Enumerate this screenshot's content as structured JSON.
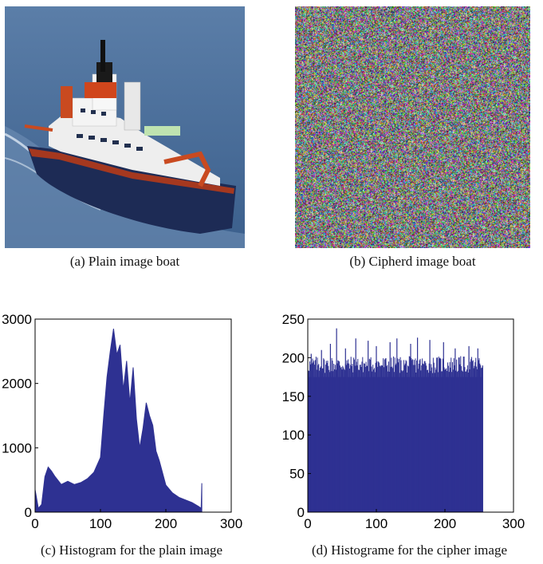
{
  "figure": {
    "panels": [
      {
        "id": "a",
        "caption": "(a) Plain image boat",
        "kind": "photo",
        "palette": {
          "sea": "#4a6f9a",
          "hull": "#1d2b55",
          "superstructure": "#f2f2f2",
          "accent": "#d0461c"
        }
      },
      {
        "id": "b",
        "caption": "(b) Cipherd image boat",
        "kind": "noise"
      },
      {
        "id": "c",
        "caption": "(c) Histogram for the plain image",
        "kind": "histogram"
      },
      {
        "id": "d",
        "caption": "(d) Histograme for the cipher image",
        "kind": "histogram"
      }
    ]
  },
  "chart_data": [
    {
      "type": "area",
      "panel": "c",
      "title": "",
      "xlabel": "",
      "ylabel": "",
      "xlim": [
        0,
        300
      ],
      "ylim": [
        0,
        3000
      ],
      "x_ticks": [
        0,
        100,
        200,
        300
      ],
      "y_ticks": [
        0,
        1000,
        2000,
        3000
      ],
      "fill_color": "#2e3192",
      "x": [
        0,
        5,
        10,
        15,
        20,
        25,
        30,
        40,
        50,
        60,
        70,
        80,
        90,
        100,
        105,
        110,
        115,
        120,
        125,
        130,
        135,
        140,
        145,
        150,
        155,
        160,
        165,
        170,
        175,
        180,
        185,
        190,
        200,
        210,
        220,
        230,
        240,
        250,
        254,
        255
      ],
      "values": [
        350,
        60,
        120,
        550,
        700,
        640,
        560,
        430,
        480,
        430,
        460,
        520,
        620,
        850,
        1500,
        2100,
        2500,
        2850,
        2450,
        2600,
        1900,
        2350,
        1700,
        2250,
        1450,
        1000,
        1300,
        1700,
        1500,
        1350,
        950,
        800,
        420,
        300,
        230,
        190,
        150,
        90,
        60,
        450
      ]
    },
    {
      "type": "bar",
      "panel": "d",
      "title": "",
      "xlabel": "",
      "ylabel": "",
      "xlim": [
        0,
        300
      ],
      "ylim": [
        0,
        250
      ],
      "x_ticks": [
        0,
        100,
        200,
        300
      ],
      "y_ticks": [
        0,
        50,
        100,
        150,
        200,
        250
      ],
      "fill_color": "#2e3192",
      "x_range": [
        0,
        255
      ],
      "baseline_value": 175,
      "peak_values": [
        {
          "x": 5,
          "value": 205
        },
        {
          "x": 20,
          "value": 210
        },
        {
          "x": 33,
          "value": 218
        },
        {
          "x": 42,
          "value": 238
        },
        {
          "x": 55,
          "value": 212
        },
        {
          "x": 70,
          "value": 225
        },
        {
          "x": 88,
          "value": 222
        },
        {
          "x": 100,
          "value": 215
        },
        {
          "x": 120,
          "value": 220
        },
        {
          "x": 130,
          "value": 225
        },
        {
          "x": 150,
          "value": 218
        },
        {
          "x": 160,
          "value": 226
        },
        {
          "x": 178,
          "value": 223
        },
        {
          "x": 198,
          "value": 220
        },
        {
          "x": 215,
          "value": 212
        },
        {
          "x": 235,
          "value": 215
        },
        {
          "x": 248,
          "value": 212
        },
        {
          "x": 255,
          "value": 190
        }
      ]
    }
  ]
}
